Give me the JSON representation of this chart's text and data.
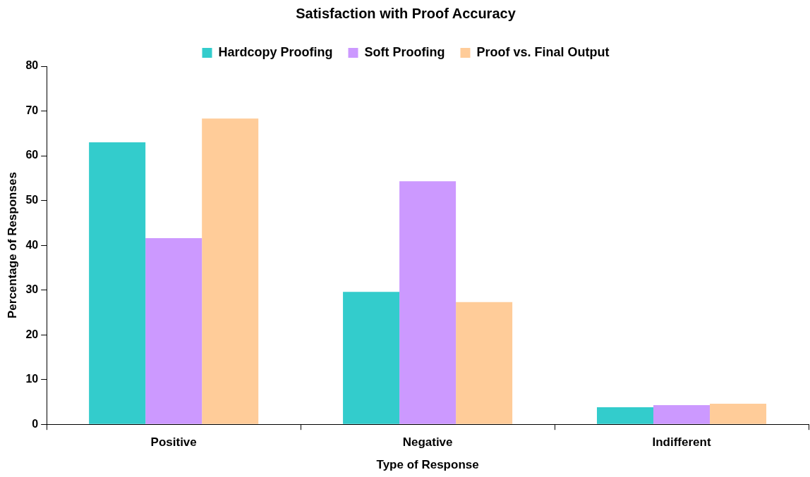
{
  "chart_data": {
    "type": "bar",
    "title": "Satisfaction with Proof Accuracy",
    "xlabel": "Type of Response",
    "ylabel": "Percentage of Responses",
    "categories": [
      "Positive",
      "Negative",
      "Indifferent"
    ],
    "series": [
      {
        "name": "Hardcopy Proofing",
        "color": "#33cccc",
        "values": [
          63.0,
          29.6,
          3.8
        ]
      },
      {
        "name": "Soft Proofing",
        "color": "#cc99ff",
        "values": [
          41.6,
          54.3,
          4.3
        ]
      },
      {
        "name": "Proof vs. Final Output",
        "color": "#ffcc99",
        "values": [
          68.3,
          27.3,
          4.6
        ]
      }
    ],
    "ylim": [
      0,
      80
    ],
    "yticks": [
      0,
      10,
      20,
      30,
      40,
      50,
      60,
      70,
      80
    ],
    "legend": "top"
  }
}
